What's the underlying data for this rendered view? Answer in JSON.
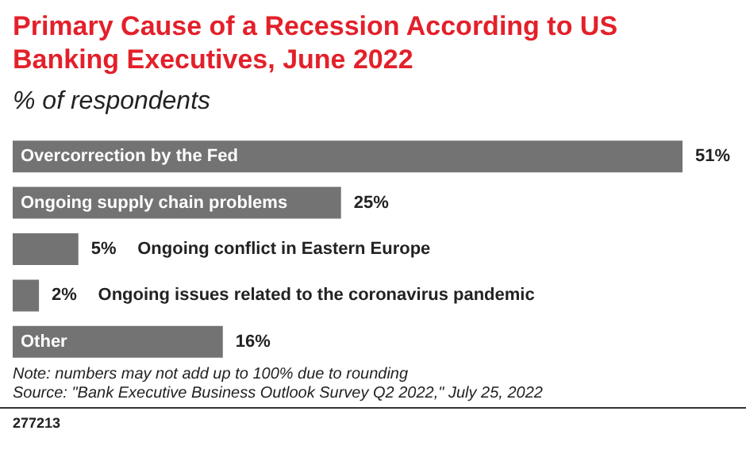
{
  "chart_data": {
    "type": "bar",
    "orientation": "horizontal",
    "title": "Primary Cause of a Recession According to US Banking Executives, June 2022",
    "subtitle": "% of respondents",
    "categories": [
      "Overcorrection by the Fed",
      "Ongoing supply chain problems",
      "Ongoing conflict in Eastern Europe",
      "Ongoing issues related to the coronavirus pandemic",
      "Other"
    ],
    "values": [
      51,
      25,
      5,
      2,
      16
    ],
    "value_labels": [
      "51%",
      "25%",
      "5%",
      "2%",
      "16%"
    ],
    "color": "#737373",
    "annotations": [
      "Note: numbers may not add up to 100% due to rounding",
      "Source: \"Bank Executive Business Outlook Survey Q2 2022,\" July 25, 2022",
      "277213"
    ]
  }
}
